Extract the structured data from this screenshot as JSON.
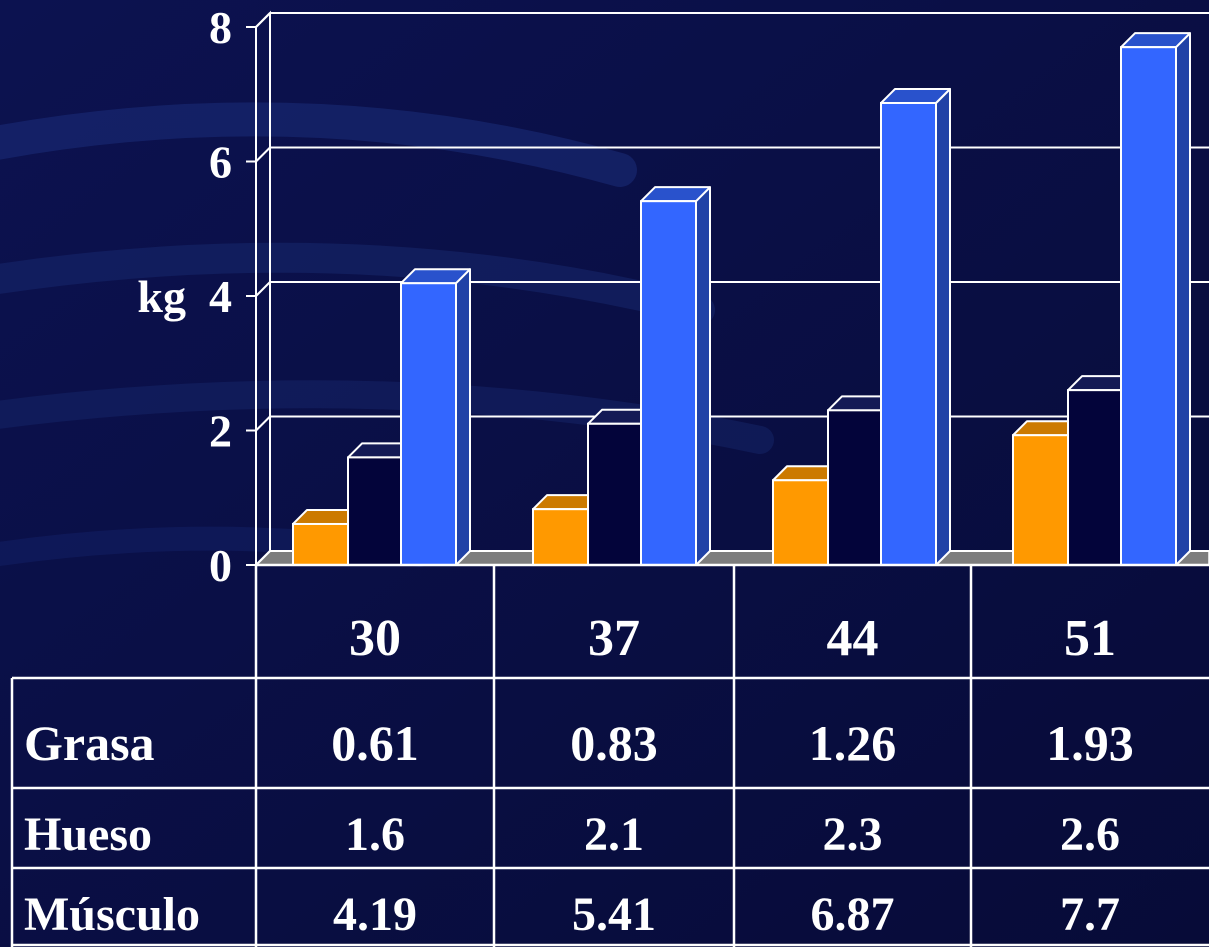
{
  "chart_data": {
    "type": "bar",
    "style": "3d-clustered-column-with-data-table",
    "ylabel": "kg",
    "ylim": [
      0,
      8
    ],
    "yticks": [
      0,
      2,
      4,
      6,
      8
    ],
    "grid": true,
    "categories": [
      "30",
      "37",
      "44",
      "51"
    ],
    "series": [
      {
        "name": "Grasa",
        "values": [
          0.61,
          0.83,
          1.26,
          1.93
        ],
        "labels": [
          "0.61",
          "0.83",
          "1.26",
          "1.93"
        ],
        "color": "#ff9900"
      },
      {
        "name": "Hueso",
        "values": [
          1.6,
          2.1,
          2.3,
          2.6
        ],
        "labels": [
          "1.6",
          "2.1",
          "2.3",
          "2.6"
        ],
        "color": "#03043a"
      },
      {
        "name": "Músculo",
        "values": [
          4.19,
          5.41,
          6.87,
          7.7
        ],
        "labels": [
          "4.19",
          "5.41",
          "6.87",
          "7.7"
        ],
        "color": "#3366ff"
      }
    ]
  }
}
